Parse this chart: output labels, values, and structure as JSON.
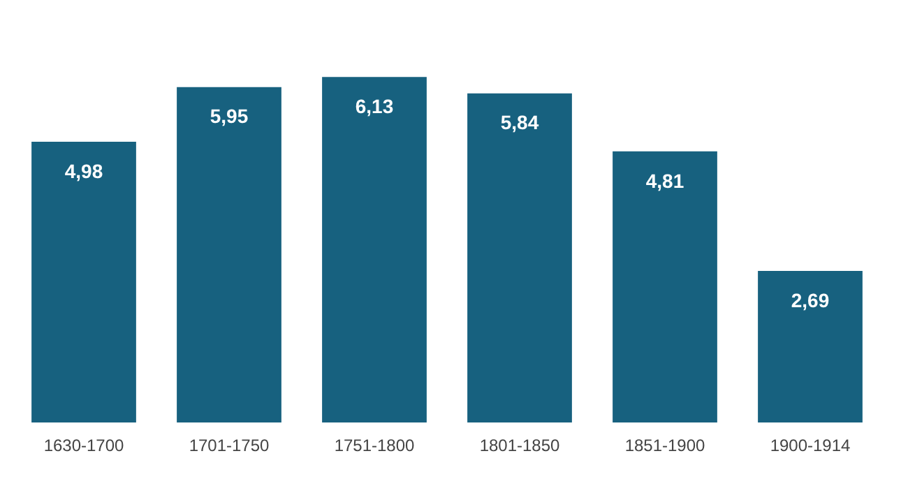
{
  "chart_data": {
    "type": "bar",
    "categories": [
      "1630-1700",
      "1701-1750",
      "1751-1800",
      "1801-1850",
      "1851-1900",
      "1900-1914"
    ],
    "values": [
      4.98,
      5.95,
      6.13,
      5.84,
      4.81,
      2.69
    ],
    "value_labels": [
      "4,98",
      "5,95",
      "6,13",
      "5,84",
      "4,81",
      "2,69"
    ],
    "color": "#17617f",
    "grid": false,
    "legend": false,
    "tick_labels": "x"
  }
}
